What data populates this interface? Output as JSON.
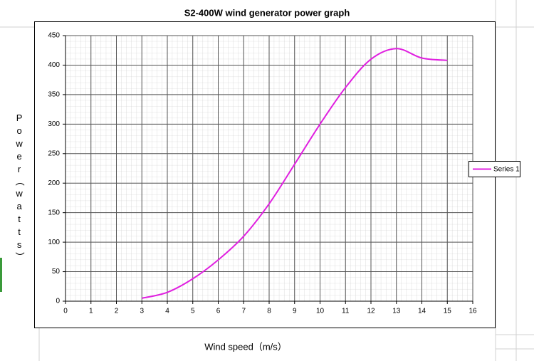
{
  "chart_data": {
    "type": "line",
    "title": "S2-400W wind generator power graph",
    "x_label": "Wind speed（m/s）",
    "y_label": "Power（watts）",
    "x": [
      3,
      4,
      5,
      6,
      7,
      8,
      9,
      10,
      11,
      12,
      13,
      14,
      15
    ],
    "series": [
      {
        "name": "Series 1",
        "color": "#e020e0",
        "values": [
          5,
          15,
          38,
          70,
          110,
          165,
          232,
          300,
          362,
          410,
          428,
          412,
          408
        ]
      }
    ],
    "xlim": [
      0,
      16
    ],
    "xticks": [
      0,
      1,
      2,
      3,
      4,
      5,
      6,
      7,
      8,
      9,
      10,
      11,
      12,
      13,
      14,
      15,
      16
    ],
    "ylim": [
      0,
      450
    ],
    "yticks": [
      0,
      50,
      100,
      150,
      200,
      250,
      300,
      350,
      400,
      450
    ],
    "grid": true,
    "legend": "right"
  }
}
